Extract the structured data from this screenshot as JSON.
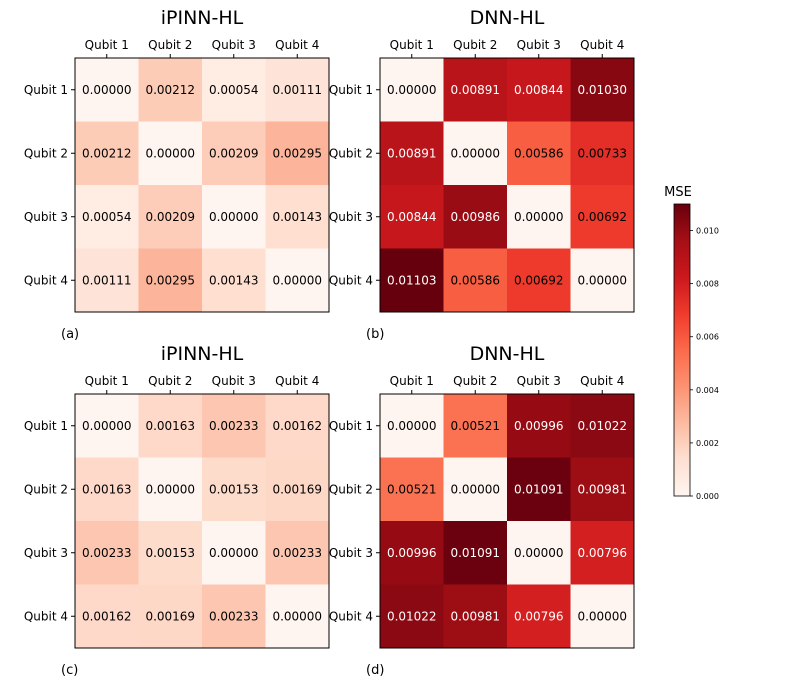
{
  "figure": {
    "colorbar": {
      "label": "MSE",
      "ticks": [
        "0.000",
        "0.002",
        "0.004",
        "0.006",
        "0.008",
        "0.010"
      ],
      "tick_values": [
        0.0,
        0.002,
        0.004,
        0.006,
        0.008,
        0.01
      ],
      "vmin": 0.0,
      "vmax": 0.011
    },
    "colormap": "Reds",
    "colormap_stops": [
      "#fff5f0",
      "#fee0d2",
      "#fcbba1",
      "#fc9272",
      "#fb6a4a",
      "#ef3b2c",
      "#cb181d",
      "#a50f15",
      "#67000d"
    ]
  },
  "chart_data": [
    {
      "type": "heatmap",
      "panel": "(a)",
      "title": "iPINN-HL",
      "x_labels": [
        "Qubit 1",
        "Qubit 2",
        "Qubit 3",
        "Qubit 4"
      ],
      "y_labels": [
        "Qubit 1",
        "Qubit 2",
        "Qubit 3",
        "Qubit 4"
      ],
      "values": [
        [
          0.0,
          0.00212,
          0.00054,
          0.00111
        ],
        [
          0.00212,
          0.0,
          0.00209,
          0.00295
        ],
        [
          0.00054,
          0.00209,
          0.0,
          0.00143
        ],
        [
          0.00111,
          0.00295,
          0.00143,
          0.0
        ]
      ],
      "labels": [
        [
          "0.00000",
          "0.00212",
          "0.00054",
          "0.00111"
        ],
        [
          "0.00212",
          "0.00000",
          "0.00209",
          "0.00295"
        ],
        [
          "0.00054",
          "0.00209",
          "0.00000",
          "0.00143"
        ],
        [
          "0.00111",
          "0.00295",
          "0.00143",
          "0.00000"
        ]
      ]
    },
    {
      "type": "heatmap",
      "panel": "(b)",
      "title": "DNN-HL",
      "x_labels": [
        "Qubit 1",
        "Qubit 2",
        "Qubit 3",
        "Qubit 4"
      ],
      "y_labels": [
        "Qubit 1",
        "Qubit 2",
        "Qubit 3",
        "Qubit 4"
      ],
      "values": [
        [
          0.0,
          0.00891,
          0.00844,
          0.0103
        ],
        [
          0.00891,
          0.0,
          0.00586,
          0.00733
        ],
        [
          0.00844,
          0.00986,
          0.0,
          0.00692
        ],
        [
          0.01103,
          0.00586,
          0.00692,
          0.0
        ]
      ],
      "labels": [
        [
          "0.00000",
          "0.00891",
          "0.00844",
          "0.01030"
        ],
        [
          "0.00891",
          "0.00000",
          "0.00586",
          "0.00733"
        ],
        [
          "0.00844",
          "0.00986",
          "0.00000",
          "0.00692"
        ],
        [
          "0.01103",
          "0.00586",
          "0.00692",
          "0.00000"
        ]
      ]
    },
    {
      "type": "heatmap",
      "panel": "(c)",
      "title": "iPINN-HL",
      "x_labels": [
        "Qubit 1",
        "Qubit 2",
        "Qubit 3",
        "Qubit 4"
      ],
      "y_labels": [
        "Qubit 1",
        "Qubit 2",
        "Qubit 3",
        "Qubit 4"
      ],
      "values": [
        [
          0.0,
          0.00163,
          0.00233,
          0.00162
        ],
        [
          0.00163,
          0.0,
          0.00153,
          0.00169
        ],
        [
          0.00233,
          0.00153,
          0.0,
          0.00233
        ],
        [
          0.00162,
          0.00169,
          0.00233,
          0.0
        ]
      ],
      "labels": [
        [
          "0.00000",
          "0.00163",
          "0.00233",
          "0.00162"
        ],
        [
          "0.00163",
          "0.00000",
          "0.00153",
          "0.00169"
        ],
        [
          "0.00233",
          "0.00153",
          "0.00000",
          "0.00233"
        ],
        [
          "0.00162",
          "0.00169",
          "0.00233",
          "0.00000"
        ]
      ]
    },
    {
      "type": "heatmap",
      "panel": "(d)",
      "title": "DNN-HL",
      "x_labels": [
        "Qubit 1",
        "Qubit 2",
        "Qubit 3",
        "Qubit 4"
      ],
      "y_labels": [
        "Qubit 1",
        "Qubit 2",
        "Qubit 3",
        "Qubit 4"
      ],
      "values": [
        [
          0.0,
          0.00521,
          0.00996,
          0.01022
        ],
        [
          0.00521,
          0.0,
          0.01091,
          0.00981
        ],
        [
          0.00996,
          0.01091,
          0.0,
          0.00796
        ],
        [
          0.01022,
          0.00981,
          0.00796,
          0.0
        ]
      ],
      "labels": [
        [
          "0.00000",
          "0.00521",
          "0.00996",
          "0.01022"
        ],
        [
          "0.00521",
          "0.00000",
          "0.01091",
          "0.00981"
        ],
        [
          "0.00996",
          "0.01091",
          "0.00000",
          "0.00796"
        ],
        [
          "0.01022",
          "0.00981",
          "0.00796",
          "0.00000"
        ]
      ]
    }
  ]
}
